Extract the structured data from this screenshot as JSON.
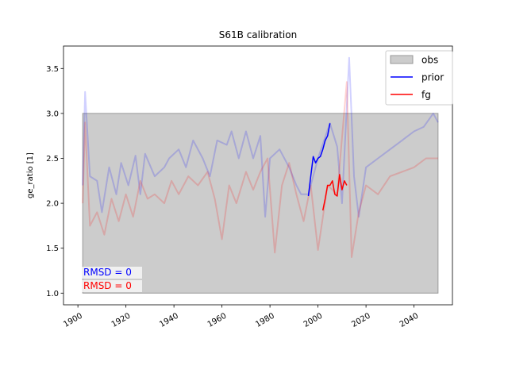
{
  "chart_data": {
    "type": "line",
    "title": "S61B calibration",
    "y_label": "ge_ratio [1]",
    "xlim": [
      1894,
      2056
    ],
    "ylim": [
      0.87,
      3.75
    ],
    "xticks": [
      1900,
      1920,
      1940,
      1960,
      1980,
      2000,
      2020,
      2040
    ],
    "yticks": [
      {
        "value": 1.0,
        "label": "1.0"
      },
      {
        "value": 1.5,
        "label": "1.5"
      },
      {
        "value": 2.0,
        "label": "2.0"
      },
      {
        "value": 2.5,
        "label": "2.5"
      },
      {
        "value": 3.0,
        "label": "3.0"
      },
      {
        "value": 3.5,
        "label": "3.5"
      }
    ],
    "legend": "upper right",
    "series": [
      {
        "name": "obs",
        "kind": "band",
        "color": "#cccccc",
        "edge": "#999999",
        "x": [
          1902,
          2050
        ],
        "lower": [
          1.0,
          1.0
        ],
        "upper": [
          3.0,
          3.0
        ]
      },
      {
        "name": "prior",
        "color": "#0000ff",
        "x": [
          1996,
          1997,
          1998,
          1999,
          2000,
          2001,
          2002,
          2003,
          2004,
          2005
        ],
        "values": [
          2.08,
          2.3,
          2.52,
          2.45,
          2.5,
          2.52,
          2.6,
          2.7,
          2.75,
          2.89
        ]
      },
      {
        "name": "fg",
        "color": "#ff0000",
        "x": [
          2002,
          2003,
          2004,
          2005,
          2006,
          2007,
          2008,
          2009,
          2010,
          2011,
          2012
        ],
        "values": [
          1.92,
          2.05,
          2.2,
          2.2,
          2.25,
          2.1,
          2.08,
          2.32,
          2.15,
          2.25,
          2.2
        ]
      }
    ],
    "background_lines": [
      {
        "color": "#0000ff",
        "opacity": 0.18,
        "x": [
          1902,
          1903,
          1905,
          1908,
          1910,
          1913,
          1916,
          1918,
          1921,
          1924,
          1926,
          1928,
          1932,
          1936,
          1938,
          1942,
          1945,
          1948,
          1952,
          1955,
          1958,
          1962,
          1964,
          1967,
          1970,
          1973,
          1976,
          1978,
          1980,
          1984,
          1988,
          1991,
          1993,
          1996,
          2000,
          2005,
          2008,
          2010,
          2013,
          2015,
          2017,
          2020,
          2025,
          2030,
          2035,
          2040,
          2044,
          2048,
          2050
        ],
        "values": [
          2.2,
          3.24,
          2.3,
          2.25,
          1.9,
          2.4,
          2.1,
          2.45,
          2.2,
          2.53,
          2.1,
          2.55,
          2.3,
          2.4,
          2.5,
          2.6,
          2.4,
          2.7,
          2.5,
          2.3,
          2.7,
          2.65,
          2.8,
          2.5,
          2.8,
          2.5,
          2.75,
          1.85,
          2.5,
          2.6,
          2.4,
          2.2,
          2.1,
          2.1,
          2.5,
          2.89,
          2.63,
          2.0,
          3.62,
          2.3,
          1.85,
          2.4,
          2.5,
          2.6,
          2.7,
          2.8,
          2.85,
          3.0,
          2.9
        ]
      },
      {
        "color": "#ff0000",
        "opacity": 0.18,
        "x": [
          1902,
          1903,
          1905,
          1908,
          1911,
          1914,
          1917,
          1920,
          1923,
          1926,
          1929,
          1932,
          1936,
          1939,
          1942,
          1946,
          1950,
          1954,
          1957,
          1960,
          1963,
          1966,
          1970,
          1973,
          1976,
          1979,
          1982,
          1985,
          1988,
          1991,
          1994,
          1997,
          2000,
          2004,
          2008,
          2012,
          2014,
          2017,
          2020,
          2025,
          2030,
          2035,
          2040,
          2045,
          2050
        ],
        "values": [
          2.0,
          2.9,
          1.75,
          1.9,
          1.65,
          2.05,
          1.8,
          2.1,
          1.85,
          2.25,
          2.05,
          2.1,
          2.0,
          2.25,
          2.1,
          2.3,
          2.2,
          2.35,
          2.05,
          1.6,
          2.2,
          2.0,
          2.35,
          2.15,
          2.35,
          2.5,
          1.45,
          2.2,
          2.45,
          2.1,
          1.8,
          2.2,
          1.48,
          2.2,
          2.1,
          3.35,
          1.4,
          1.9,
          2.2,
          2.1,
          2.3,
          2.35,
          2.4,
          2.5,
          2.5
        ]
      }
    ],
    "annotations": [
      {
        "text": "RMSD = 0",
        "color": "#0000ff"
      },
      {
        "text": "RMSD = 0",
        "color": "#ff0000"
      }
    ]
  }
}
